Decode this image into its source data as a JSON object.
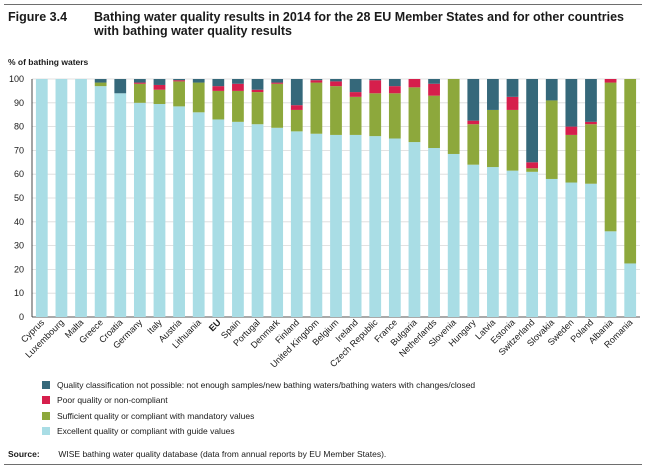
{
  "figure": {
    "label": "Figure 3.4",
    "title": "Bathing water quality results in 2014 for the 28 EU Member States and for other countries with bathing water quality results"
  },
  "source": {
    "label": "Source:",
    "text": "WISE bathing water quality database (data from annual reports by EU Member States)."
  },
  "chart_data": {
    "type": "bar",
    "stacked": true,
    "ylabel": "% of bathing waters",
    "ylim": [
      0,
      100
    ],
    "yticks": [
      0,
      10,
      20,
      30,
      40,
      50,
      60,
      70,
      80,
      90,
      100
    ],
    "grid": true,
    "legend_position": "bottom",
    "categories": [
      "Cyprus",
      "Luxembourg",
      "Malta",
      "Greece",
      "Croatia",
      "Germany",
      "Italy",
      "Austria",
      "Lithuania",
      "EU",
      "Spain",
      "Portugal",
      "Denmark",
      "Finland",
      "United Kingdom",
      "Belgium",
      "Ireland",
      "Czech Republic",
      "France",
      "Bulgaria",
      "Netherlands",
      "Slovenia",
      "Hungary",
      "Latvia",
      "Estonia",
      "Switzerland",
      "Slovakia",
      "Sweden",
      "Poland",
      "Albania",
      "Romania"
    ],
    "bold_categories": [
      "EU"
    ],
    "series": [
      {
        "name": "Excellent quality or compliant with guide values",
        "color": "#a9dde5",
        "values": [
          100,
          100,
          100,
          97,
          94,
          90,
          89.5,
          88.5,
          86,
          83,
          82,
          81,
          79.5,
          78,
          77,
          76.5,
          76.5,
          76,
          75,
          73.5,
          71,
          68.5,
          64,
          63,
          61.5,
          61,
          58,
          56.5,
          56,
          36,
          22.5
        ]
      },
      {
        "name": "Sufficient quality or compliant with mandatory values",
        "color": "#8da83c",
        "values": [
          0,
          0,
          0,
          1.5,
          0,
          8,
          6,
          10.5,
          12.5,
          12,
          13,
          13.5,
          18.5,
          9,
          21.5,
          20.5,
          16,
          18,
          19,
          23,
          22,
          31.5,
          17,
          24,
          25.5,
          1.5,
          33,
          20,
          25,
          62.5,
          77.5
        ]
      },
      {
        "name": "Poor quality or non-compliant",
        "color": "#d61f4c",
        "values": [
          0,
          0,
          0,
          0,
          0,
          0.5,
          2,
          0.5,
          0,
          2,
          3,
          1,
          0.5,
          2,
          1,
          2,
          2,
          5.5,
          3,
          3.5,
          5,
          0,
          1.5,
          0,
          5.5,
          2.5,
          0,
          3.5,
          1,
          1.5,
          0
        ]
      },
      {
        "name": "Quality classification not possible: not enough samples/new bathing waters/bathing waters with changes/closed",
        "color": "#35687a",
        "values": [
          0,
          0,
          0,
          1.5,
          6,
          1.5,
          2.5,
          0.5,
          1.5,
          3,
          2,
          4.5,
          1.5,
          11,
          0.5,
          1,
          5.5,
          0.5,
          3,
          0,
          2,
          0,
          17.5,
          13,
          7.5,
          35,
          9,
          20,
          18,
          0,
          0
        ]
      }
    ],
    "legend_order": [
      3,
      2,
      1,
      0
    ]
  }
}
